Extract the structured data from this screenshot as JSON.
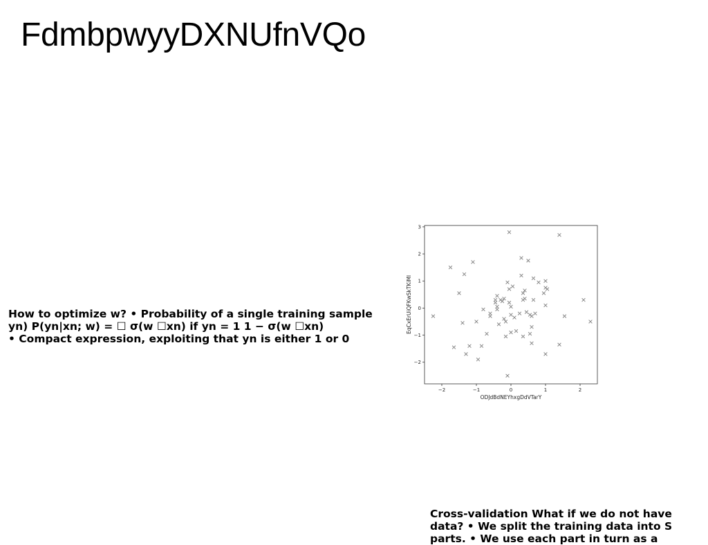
{
  "slide": {
    "title": "FdmbpwyyDXNUfnVQo",
    "text_left": "How to optimize w? • Probability of a single training sample\nyn) P(yn|xn; w) = ☐ σ(w ☐xn) if yn = 1 1 − σ(w ☐xn)\n• Compact expression, exploiting that yn is either 1 or 0",
    "text_bottom": "Cross-validation What if we do not have\ndata? • We split the training data into S\nparts. • We use each part in turn as a"
  },
  "chart_data": {
    "type": "scatter",
    "title": "",
    "xlabel": "ODJdBdNEYhxgDdVTarY",
    "ylabel": "EqCxErUiQFKwSkTKiMl",
    "xlim": [
      -2.5,
      2.5
    ],
    "ylim": [
      -2.8,
      3.05
    ],
    "xticks": [
      -2,
      -1,
      0,
      1,
      2
    ],
    "yticks": [
      -2,
      -1,
      0,
      1,
      2,
      3
    ],
    "marker": "x",
    "grid": false,
    "color": "#888888",
    "points": [
      [
        -2.25,
        -0.3
      ],
      [
        -1.75,
        1.5
      ],
      [
        -1.65,
        -1.45
      ],
      [
        -1.5,
        0.55
      ],
      [
        -1.4,
        -0.55
      ],
      [
        -1.35,
        1.25
      ],
      [
        -1.3,
        -1.7
      ],
      [
        -1.2,
        -1.4
      ],
      [
        -1.1,
        1.7
      ],
      [
        -1.0,
        -0.5
      ],
      [
        -0.95,
        -1.9
      ],
      [
        -0.85,
        -1.4
      ],
      [
        -0.8,
        -0.05
      ],
      [
        -0.7,
        -0.95
      ],
      [
        -0.6,
        -0.2
      ],
      [
        -0.6,
        -0.3
      ],
      [
        -0.45,
        0.3
      ],
      [
        -0.45,
        0.2
      ],
      [
        -0.4,
        0.45
      ],
      [
        -0.4,
        0.05
      ],
      [
        -0.4,
        -0.05
      ],
      [
        -0.35,
        -0.6
      ],
      [
        -0.3,
        0.3
      ],
      [
        -0.25,
        0.25
      ],
      [
        -0.2,
        -0.4
      ],
      [
        -0.2,
        0.35
      ],
      [
        -0.15,
        -1.05
      ],
      [
        -0.15,
        -0.5
      ],
      [
        -0.1,
        0.95
      ],
      [
        -0.1,
        -2.5
      ],
      [
        -0.05,
        2.8
      ],
      [
        -0.05,
        0.2
      ],
      [
        -0.05,
        0.7
      ],
      [
        0.0,
        -0.25
      ],
      [
        0.0,
        0.05
      ],
      [
        0.0,
        -0.9
      ],
      [
        0.05,
        0.8
      ],
      [
        0.1,
        -0.35
      ],
      [
        0.15,
        -0.85
      ],
      [
        0.25,
        -0.2
      ],
      [
        0.3,
        1.85
      ],
      [
        0.3,
        1.2
      ],
      [
        0.35,
        0.55
      ],
      [
        0.35,
        0.3
      ],
      [
        0.35,
        -1.05
      ],
      [
        0.4,
        0.65
      ],
      [
        0.4,
        0.35
      ],
      [
        0.45,
        -0.15
      ],
      [
        0.5,
        1.75
      ],
      [
        0.55,
        -0.25
      ],
      [
        0.55,
        -0.95
      ],
      [
        0.6,
        -0.7
      ],
      [
        0.6,
        -0.3
      ],
      [
        0.6,
        -1.3
      ],
      [
        0.65,
        1.1
      ],
      [
        0.65,
        0.3
      ],
      [
        0.7,
        -0.2
      ],
      [
        0.8,
        0.95
      ],
      [
        0.95,
        0.55
      ],
      [
        1.0,
        0.75
      ],
      [
        1.0,
        1.0
      ],
      [
        1.0,
        0.1
      ],
      [
        1.0,
        -1.7
      ],
      [
        1.05,
        0.7
      ],
      [
        1.4,
        2.7
      ],
      [
        1.4,
        -1.35
      ],
      [
        1.55,
        -0.3
      ],
      [
        2.1,
        0.3
      ],
      [
        2.3,
        -0.5
      ]
    ]
  }
}
